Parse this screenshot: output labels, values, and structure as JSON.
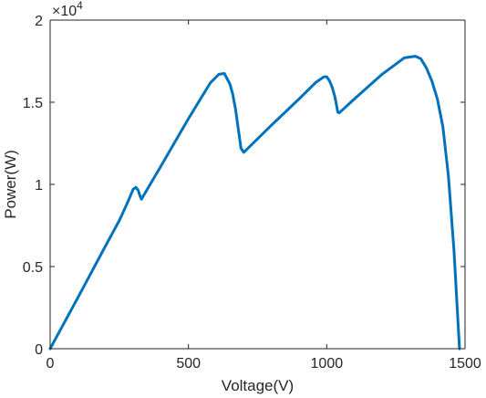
{
  "chart_data": {
    "type": "line",
    "title": "",
    "xlabel": "Voltage(V)",
    "ylabel": "Power(W)",
    "y_exponent_label": "×10",
    "y_exponent_power": "4",
    "xlim": [
      0,
      1500
    ],
    "ylim": [
      0,
      20000
    ],
    "x_ticks": [
      0,
      500,
      1000,
      1500
    ],
    "x_tick_labels": [
      "0",
      "500",
      "1000",
      "1500"
    ],
    "y_ticks": [
      0,
      5000,
      10000,
      15000,
      20000
    ],
    "y_tick_labels": [
      "0",
      "0.5",
      "1",
      "1.5",
      "2"
    ],
    "grid": false,
    "series": [
      {
        "color": "#0072BD",
        "x": [
          0,
          100,
          200,
          250,
          280,
          300,
          310,
          318,
          325,
          330,
          400,
          500,
          580,
          610,
          630,
          650,
          660,
          670,
          680,
          690,
          700,
          800,
          900,
          960,
          990,
          1000,
          1010,
          1020,
          1030,
          1040,
          1045,
          1100,
          1200,
          1280,
          1320,
          1340,
          1360,
          1380,
          1400,
          1420,
          1440,
          1460,
          1470,
          1480
        ],
        "y": [
          0,
          3100,
          6250,
          7800,
          8900,
          9700,
          9820,
          9650,
          9300,
          9100,
          11100,
          14000,
          16200,
          16700,
          16750,
          16100,
          15500,
          14600,
          13400,
          12200,
          11950,
          13600,
          15200,
          16200,
          16550,
          16550,
          16300,
          15900,
          15300,
          14400,
          14350,
          15200,
          16700,
          17700,
          17800,
          17650,
          17100,
          16300,
          15200,
          13500,
          10500,
          6000,
          3000,
          0
        ]
      }
    ]
  }
}
